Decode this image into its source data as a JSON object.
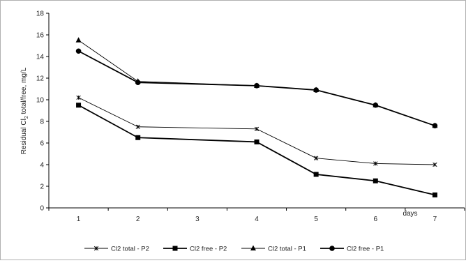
{
  "chart_data": {
    "type": "line",
    "title": "",
    "xlabel": "days",
    "ylabel_prefix": "Residual Cl",
    "ylabel_subscript": "2",
    "ylabel_suffix": " total/free, mg/L",
    "categories": [
      "1",
      "2",
      "3",
      "4",
      "5",
      "6",
      "7"
    ],
    "yticks": [
      "0",
      "2",
      "4",
      "6",
      "8",
      "10",
      "12",
      "14",
      "16",
      "18"
    ],
    "ylim": [
      0,
      18
    ],
    "grid": false,
    "legend_position": "bottom",
    "series": [
      {
        "name": "Cl2 total - P2",
        "marker": "x-star",
        "stroke": "thin",
        "points": [
          [
            1,
            10.2
          ],
          [
            2,
            7.5
          ],
          [
            4,
            7.3
          ],
          [
            5,
            4.6
          ],
          [
            6,
            4.1
          ],
          [
            7,
            4.0
          ]
        ]
      },
      {
        "name": "Cl2 free - P2",
        "marker": "square",
        "stroke": "thick",
        "points": [
          [
            1,
            9.5
          ],
          [
            2,
            6.5
          ],
          [
            4,
            6.1
          ],
          [
            5,
            3.1
          ],
          [
            6,
            2.5
          ],
          [
            7,
            1.2
          ]
        ]
      },
      {
        "name": "Cl2 total - P1",
        "marker": "triangle",
        "stroke": "thin",
        "points": [
          [
            1,
            15.5
          ],
          [
            2,
            11.7
          ],
          [
            4,
            11.3
          ],
          [
            5,
            10.9
          ],
          [
            6,
            9.5
          ],
          [
            7,
            7.6
          ]
        ]
      },
      {
        "name": "Cl2 free - P1",
        "marker": "circle",
        "stroke": "thick",
        "points": [
          [
            1,
            14.5
          ],
          [
            2,
            11.6
          ],
          [
            4,
            11.3
          ],
          [
            5,
            10.9
          ],
          [
            6,
            9.5
          ],
          [
            7,
            7.6
          ]
        ]
      }
    ]
  }
}
